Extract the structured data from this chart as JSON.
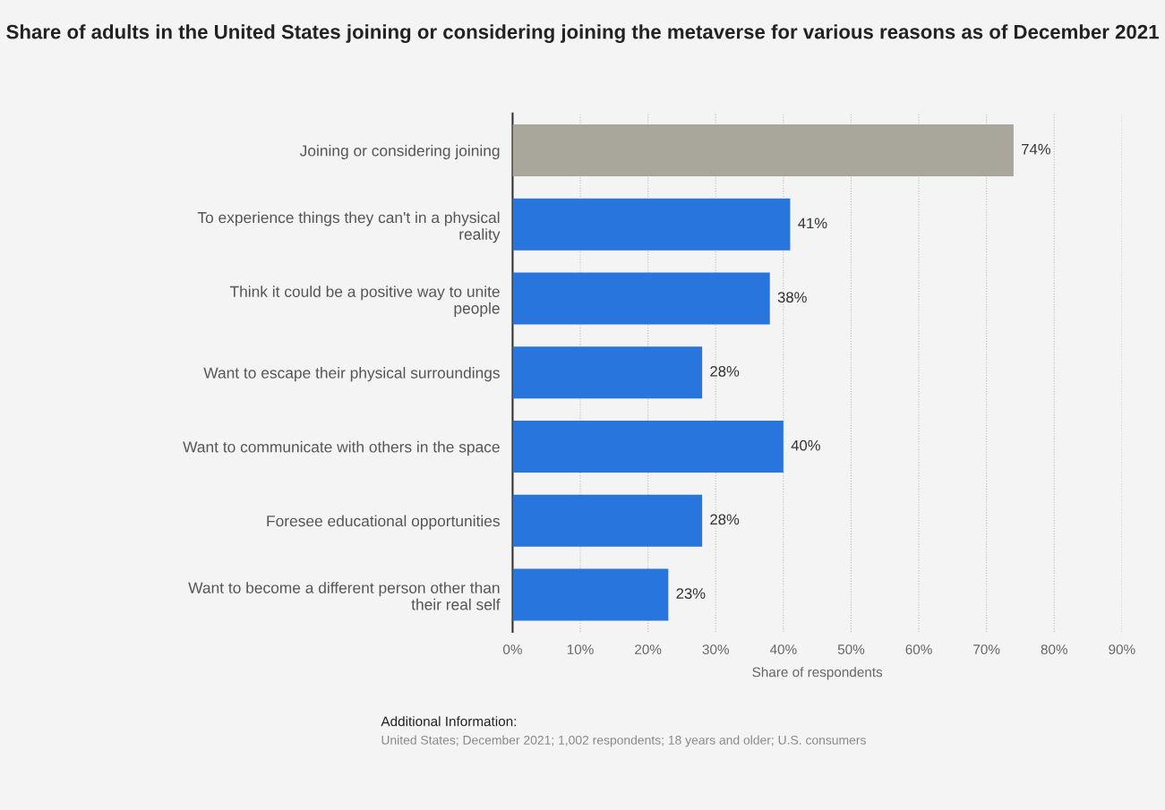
{
  "chart_data": {
    "type": "bar",
    "orientation": "horizontal",
    "title": "Share of adults in the United States joining or considering joining the metaverse for various reasons as of December 2021",
    "xlabel": "Share of respondents",
    "categories": [
      "Joining or considering joining",
      "To experience things they can't in a physical reality",
      "Think it could be a positive way to unite people",
      "Want to escape their physical surroundings",
      "Want to communicate with others in the space",
      "Foresee educational opportunities",
      "Want to become a different person other than their real self"
    ],
    "values": [
      74,
      41,
      38,
      28,
      40,
      28,
      23
    ],
    "colors": [
      "#a9a79c",
      "#2876dd",
      "#2876dd",
      "#2876dd",
      "#2876dd",
      "#2876dd",
      "#2876dd"
    ],
    "value_labels": [
      "74%",
      "41%",
      "38%",
      "28%",
      "40%",
      "28%",
      "23%"
    ],
    "xlim": [
      0,
      90
    ],
    "xticks": [
      {
        "value": 0,
        "label": "0%"
      },
      {
        "value": 10,
        "label": "10%"
      },
      {
        "value": 20,
        "label": "20%"
      },
      {
        "value": 30,
        "label": "30%"
      },
      {
        "value": 40,
        "label": "40%"
      },
      {
        "value": 50,
        "label": "50%"
      },
      {
        "value": 60,
        "label": "60%"
      },
      {
        "value": 70,
        "label": "70%"
      },
      {
        "value": 80,
        "label": "80%"
      },
      {
        "value": 90,
        "label": "90%"
      }
    ],
    "grid": "x",
    "annotations": [
      "Additional Information:",
      "United States; December 2021; 1,002 respondents; 18 years and older; U.S. consumers"
    ]
  }
}
